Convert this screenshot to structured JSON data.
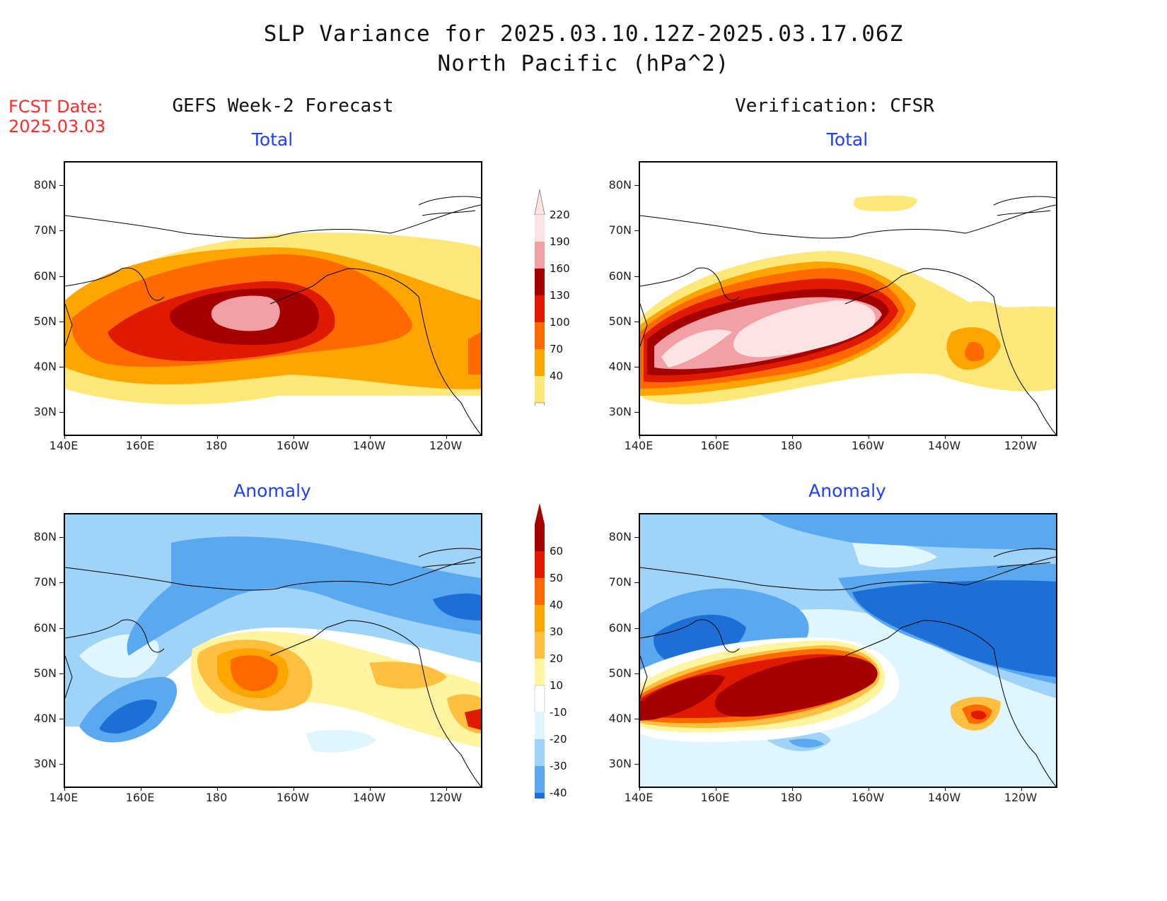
{
  "header": {
    "title_line1": "SLP Variance for 2025.03.10.12Z-2025.03.17.06Z",
    "title_line2": "North Pacific (hPa^2)",
    "fcst_label": "FCST Date:",
    "fcst_date": "2025.03.03"
  },
  "columns": {
    "left": "GEFS Week-2 Forecast",
    "right": "Verification: CFSR"
  },
  "panels": {
    "forecast_total": "Total",
    "forecast_anomaly": "Anomaly",
    "verif_total": "Total",
    "verif_anomaly": "Anomaly"
  },
  "axes": {
    "lat_labels": [
      "80N",
      "70N",
      "60N",
      "50N",
      "40N",
      "30N"
    ],
    "lon_labels": [
      "140E",
      "160E",
      "180",
      "160W",
      "140W",
      "120W"
    ]
  },
  "colorbars": {
    "total": {
      "labels": [
        "220",
        "190",
        "160",
        "130",
        "100",
        "70",
        "40"
      ],
      "colors": [
        "#fde4e4",
        "#f2a0a5",
        "#a50000",
        "#e01a00",
        "#ff6a00",
        "#ffa500",
        "#ffe87a"
      ]
    },
    "anomaly": {
      "labels": [
        "60",
        "50",
        "40",
        "30",
        "20",
        "10",
        "-10",
        "-20",
        "-30",
        "-40"
      ],
      "colors": [
        "#a50000",
        "#e01a00",
        "#ff6a00",
        "#ffa500",
        "#ffc040",
        "#fff5a0",
        "#ffffff",
        "#dff6ff",
        "#9fd3f8",
        "#5aa8ef",
        "#1d6fd6"
      ]
    }
  }
}
